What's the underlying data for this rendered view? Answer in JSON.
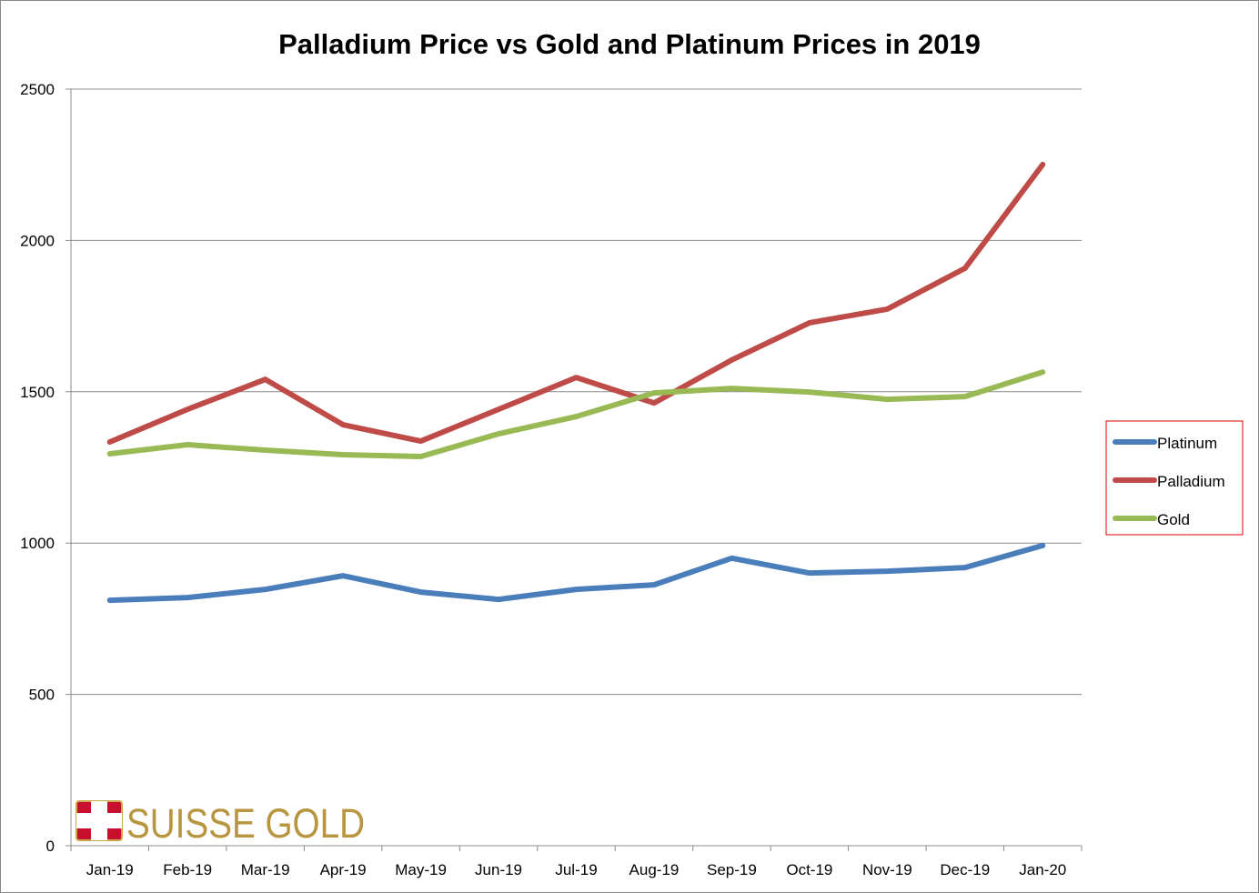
{
  "chart_data": {
    "type": "line",
    "title": "Palladium Price vs Gold and Platinum Prices in 2019",
    "xlabel": "",
    "ylabel": "",
    "ylim": [
      0,
      2500
    ],
    "yticks": [
      0,
      500,
      1000,
      1500,
      2000,
      2500
    ],
    "grid": true,
    "legend": "right",
    "categories": [
      "Jan-19",
      "Feb-19",
      "Mar-19",
      "Apr-19",
      "May-19",
      "Jun-19",
      "Jul-19",
      "Aug-19",
      "Sep-19",
      "Oct-19",
      "Nov-19",
      "Dec-19",
      "Jan-20"
    ],
    "series": [
      {
        "name": "Platinum",
        "color": "#4a7ebb",
        "values": [
          811,
          820,
          847,
          892,
          838,
          814,
          847,
          862,
          950,
          901,
          907,
          919,
          992
        ]
      },
      {
        "name": "Palladium",
        "color": "#be4b48",
        "values": [
          1334,
          1442,
          1541,
          1391,
          1337,
          1442,
          1547,
          1463,
          1605,
          1728,
          1773,
          1908,
          2251
        ]
      },
      {
        "name": "Gold",
        "color": "#98b954",
        "values": [
          1295,
          1325,
          1307,
          1292,
          1286,
          1361,
          1418,
          1496,
          1511,
          1499,
          1475,
          1484,
          1565
        ]
      }
    ]
  },
  "logo": {
    "text": "SUISSE GOLD",
    "color": "#b8953f",
    "flag_color": "#c8102e"
  }
}
